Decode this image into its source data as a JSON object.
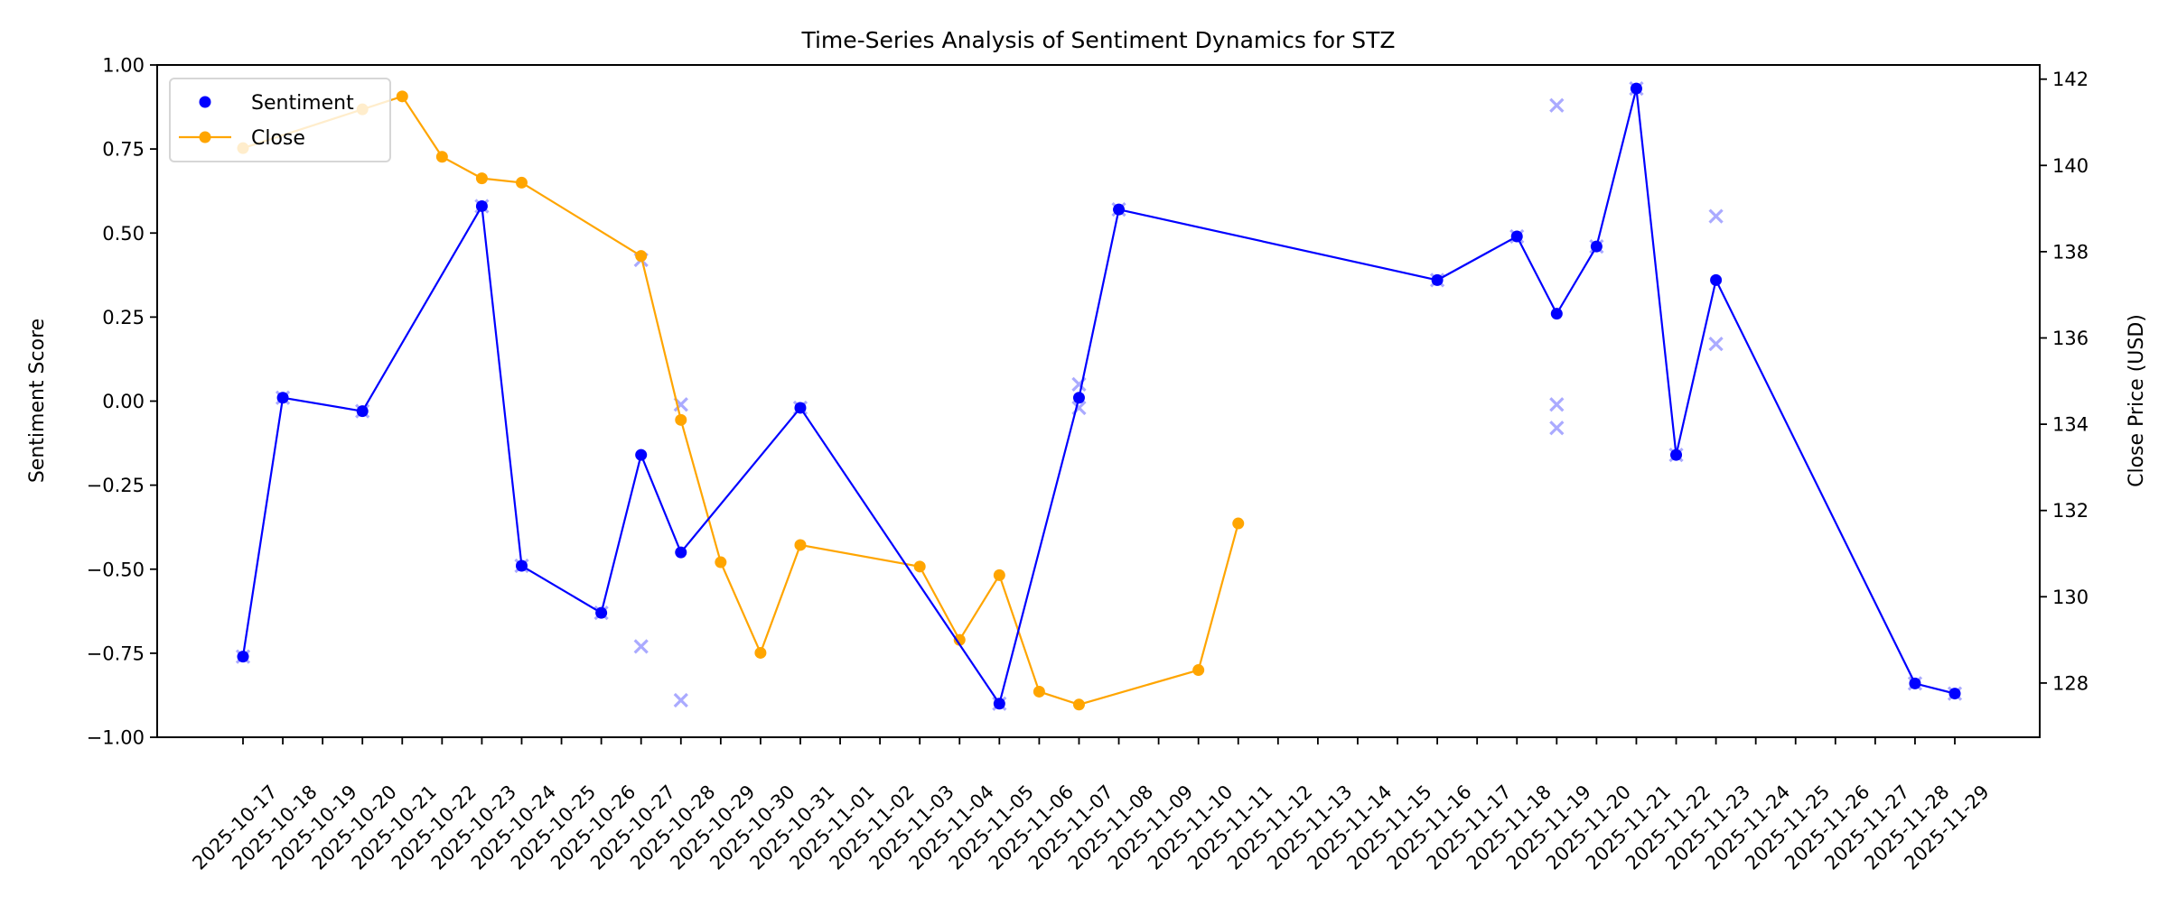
{
  "chart_data": {
    "type": "line",
    "title": "Time-Series Analysis of Sentiment Dynamics for STZ",
    "xlabel": "",
    "ylabel": "Sentiment Score",
    "ylabel_right": "Close Price (USD)",
    "ylim": [
      -1.0,
      1.0
    ],
    "ylim_right": [
      126.7,
      142.3
    ],
    "yticks": [
      "−1.00",
      "−0.75",
      "−0.50",
      "−0.25",
      "0.00",
      "0.25",
      "0.50",
      "0.75",
      "1.00"
    ],
    "ytick_values": [
      -1.0,
      -0.75,
      -0.5,
      -0.25,
      0.0,
      0.25,
      0.5,
      0.75,
      1.0
    ],
    "yticks_right": [
      "128",
      "130",
      "132",
      "134",
      "136",
      "138",
      "140",
      "142"
    ],
    "ytick_values_right": [
      128,
      130,
      132,
      134,
      136,
      138,
      140,
      142
    ],
    "x_tick_labels": [
      "2025-10-17",
      "2025-10-18",
      "2025-10-19",
      "2025-10-20",
      "2025-10-21",
      "2025-10-22",
      "2025-10-23",
      "2025-10-24",
      "2025-10-25",
      "2025-10-26",
      "2025-10-27",
      "2025-10-28",
      "2025-10-29",
      "2025-10-30",
      "2025-10-31",
      "2025-11-01",
      "2025-11-02",
      "2025-11-03",
      "2025-11-04",
      "2025-11-05",
      "2025-11-06",
      "2025-11-07",
      "2025-11-08",
      "2025-11-09",
      "2025-11-10",
      "2025-11-11",
      "2025-11-12",
      "2025-11-13",
      "2025-11-14",
      "2025-11-15",
      "2025-11-16",
      "2025-11-17",
      "2025-11-18",
      "2025-11-19",
      "2025-11-20",
      "2025-11-21",
      "2025-11-22",
      "2025-11-23",
      "2025-11-24",
      "2025-11-25",
      "2025-11-26",
      "2025-11-27",
      "2025-11-28",
      "2025-11-29"
    ],
    "grid": false,
    "legend_position": "upper left",
    "legend": [
      "Sentiment",
      "Close"
    ],
    "series": [
      {
        "name": "Sentiment",
        "axis": "left",
        "color": "#0000ff",
        "style": "line+dot",
        "x": [
          "2025-10-17",
          "2025-10-18",
          "2025-10-20",
          "2025-10-23",
          "2025-10-24",
          "2025-10-26",
          "2025-10-27",
          "2025-10-28",
          "2025-10-31",
          "2025-11-05",
          "2025-11-07",
          "2025-11-08",
          "2025-11-16",
          "2025-11-18",
          "2025-11-19",
          "2025-11-20",
          "2025-11-21",
          "2025-11-22",
          "2025-11-23",
          "2025-11-28",
          "2025-11-29"
        ],
        "values": [
          -0.76,
          0.01,
          -0.03,
          0.58,
          -0.49,
          -0.63,
          -0.16,
          -0.45,
          -0.02,
          -0.9,
          0.01,
          0.57,
          0.36,
          0.49,
          0.26,
          0.46,
          0.93,
          -0.16,
          0.36,
          -0.84,
          -0.87
        ]
      },
      {
        "name": "Close",
        "axis": "right",
        "color": "#ffa500",
        "style": "line+dot",
        "x": [
          "2025-10-17",
          "2025-10-20",
          "2025-10-21",
          "2025-10-22",
          "2025-10-23",
          "2025-10-24",
          "2025-10-27",
          "2025-10-28",
          "2025-10-29",
          "2025-10-30",
          "2025-10-31",
          "2025-11-03",
          "2025-11-04",
          "2025-11-05",
          "2025-11-06",
          "2025-11-07",
          "2025-11-10",
          "2025-11-11"
        ],
        "values": [
          140.4,
          141.3,
          141.6,
          140.2,
          139.7,
          139.6,
          137.9,
          134.1,
          130.8,
          128.7,
          131.2,
          130.7,
          129.0,
          130.5,
          127.8,
          127.5,
          128.3,
          131.7
        ]
      },
      {
        "name": "Individual sentiment observations",
        "axis": "left",
        "color": "#aaaaff",
        "style": "x-marker",
        "x": [
          "2025-10-17",
          "2025-10-18",
          "2025-10-20",
          "2025-10-23",
          "2025-10-24",
          "2025-10-26",
          "2025-10-27",
          "2025-10-27",
          "2025-10-28",
          "2025-10-28",
          "2025-10-31",
          "2025-11-05",
          "2025-11-07",
          "2025-11-07",
          "2025-11-08",
          "2025-11-16",
          "2025-11-18",
          "2025-11-19",
          "2025-11-19",
          "2025-11-19",
          "2025-11-20",
          "2025-11-21",
          "2025-11-22",
          "2025-11-23",
          "2025-11-23",
          "2025-11-28",
          "2025-11-29"
        ],
        "values": [
          -0.76,
          0.01,
          -0.03,
          0.58,
          -0.49,
          -0.63,
          0.42,
          -0.73,
          -0.01,
          -0.89,
          -0.02,
          -0.9,
          0.05,
          -0.02,
          0.57,
          0.36,
          0.49,
          0.88,
          -0.01,
          -0.08,
          0.46,
          0.93,
          -0.16,
          0.55,
          0.17,
          -0.84,
          -0.87
        ]
      }
    ]
  },
  "legend": {
    "items": [
      {
        "label": "Sentiment",
        "color": "#0000ff",
        "kind": "dot"
      },
      {
        "label": "Close",
        "color": "#ffa500",
        "kind": "line-dot"
      }
    ]
  }
}
